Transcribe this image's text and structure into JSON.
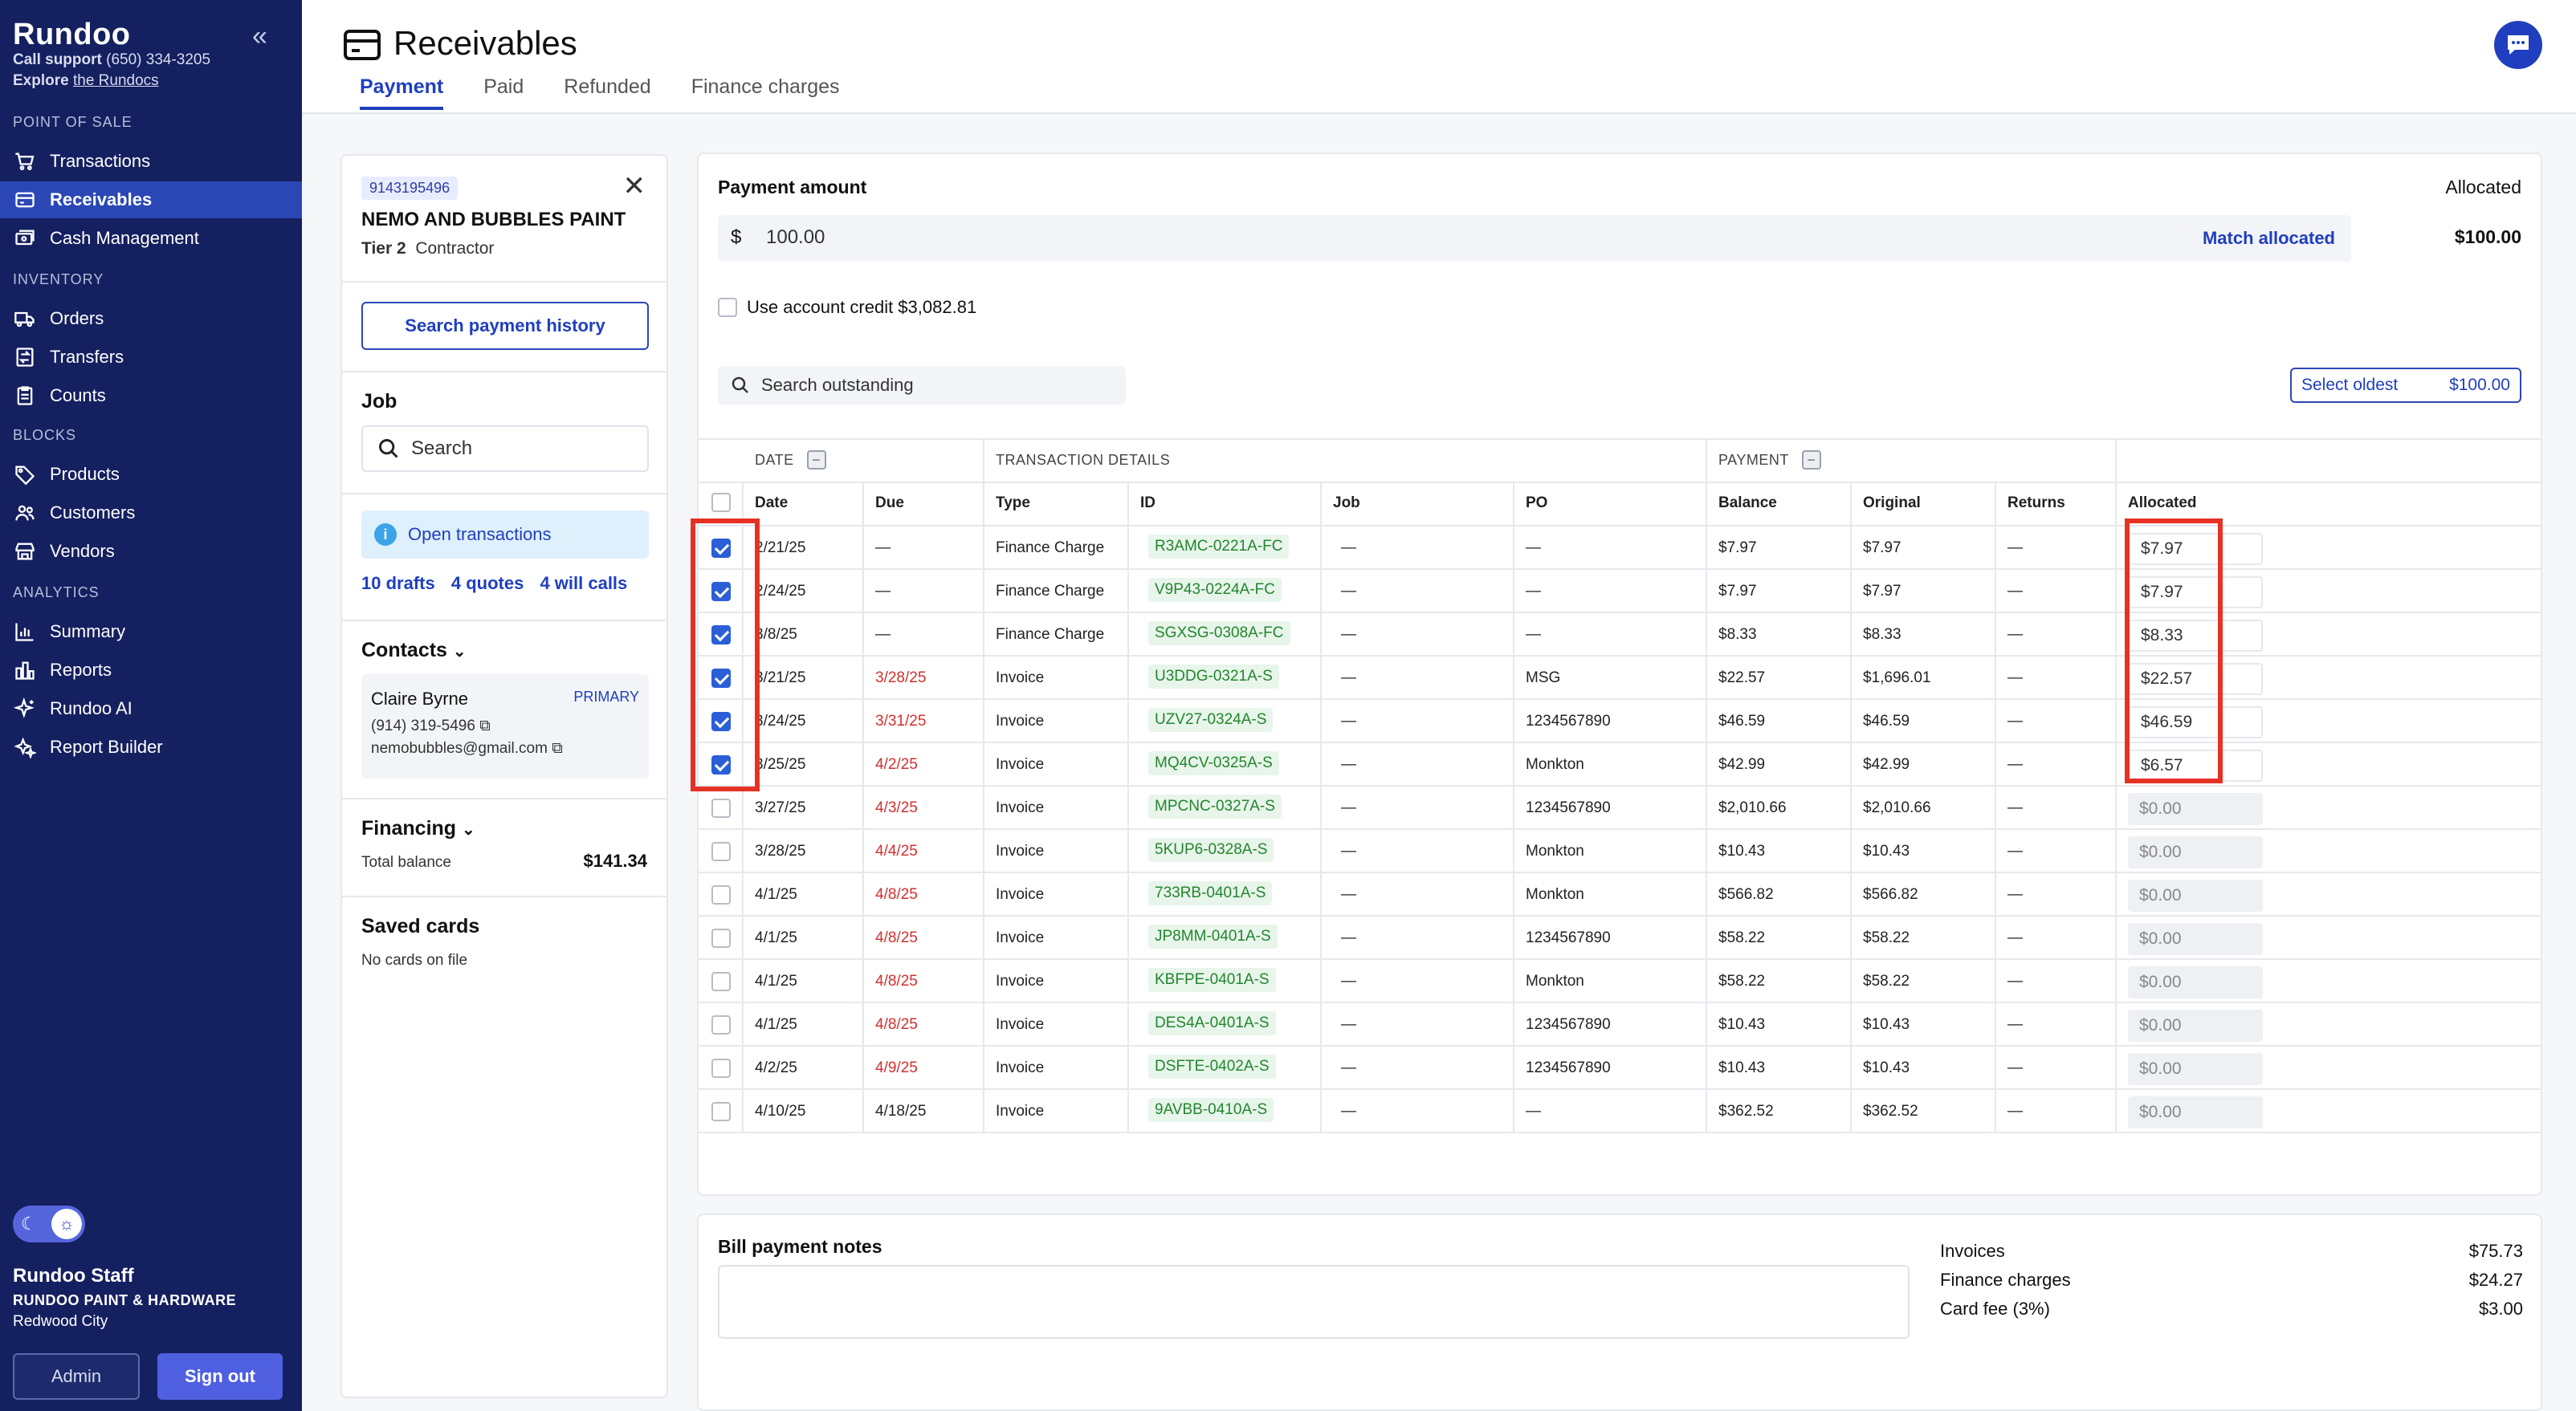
{
  "sidebar": {
    "brand": "Rundoo",
    "support_label": "Call support",
    "support_phone": "(650) 334-3205",
    "explore_label": "Explore",
    "explore_link": "the Rundocs",
    "sections": {
      "pos": "POINT OF SALE",
      "inventory": "INVENTORY",
      "blocks": "BLOCKS",
      "analytics": "ANALYTICS"
    },
    "items": {
      "transactions": "Transactions",
      "receivables": "Receivables",
      "cash": "Cash Management",
      "orders": "Orders",
      "transfers": "Transfers",
      "counts": "Counts",
      "products": "Products",
      "customers": "Customers",
      "vendors": "Vendors",
      "summary": "Summary",
      "reports": "Reports",
      "ai": "Rundoo AI",
      "builder": "Report Builder"
    },
    "user_name": "Rundoo Staff",
    "store_name": "RUNDOO PAINT & HARDWARE",
    "city": "Redwood City",
    "admin_label": "Admin",
    "signout_label": "Sign out"
  },
  "header": {
    "title": "Receivables",
    "tabs": [
      "Payment",
      "Paid",
      "Refunded",
      "Finance charges"
    ]
  },
  "customer": {
    "account": "9143195496",
    "name": "NEMO AND BUBBLES PAINT",
    "tier": "Tier 2",
    "type": "Contractor",
    "search_history_label": "Search payment history",
    "job_heading": "Job",
    "job_placeholder": "Search",
    "open_tx_label": "Open transactions",
    "drafts": "10 drafts",
    "quotes": "4 quotes",
    "will_calls": "4 will calls",
    "contacts_heading": "Contacts",
    "contact": {
      "name": "Claire Byrne",
      "badge": "PRIMARY",
      "phone": "(914) 319-5496",
      "email": "nemobubbles@gmail.com"
    },
    "financing_heading": "Financing",
    "total_balance_label": "Total balance",
    "total_balance": "$141.34",
    "saved_cards_heading": "Saved cards",
    "saved_cards_text": "No cards on file"
  },
  "payment": {
    "amount_label": "Payment amount",
    "allocated_label": "Allocated",
    "currency": "$",
    "amount": "100.00",
    "match_label": "Match allocated",
    "allocated_value": "$100.00",
    "credit_label": "Use account credit $3,082.81",
    "search_placeholder": "Search outstanding",
    "select_oldest_label": "Select oldest",
    "select_oldest_amount": "$100.00"
  },
  "table": {
    "groups": {
      "date": "DATE",
      "details": "TRANSACTION DETAILS",
      "payment": "PAYMENT"
    },
    "headers": {
      "date": "Date",
      "due": "Due",
      "type": "Type",
      "id": "ID",
      "job": "Job",
      "po": "PO",
      "balance": "Balance",
      "original": "Original",
      "returns": "Returns",
      "allocated": "Allocated"
    },
    "rows": [
      {
        "checked": true,
        "date": "2/21/25",
        "due": "—",
        "due_overdue": false,
        "type": "Finance Charge",
        "id": "R3AMC-0221A-FC",
        "job": "—",
        "po": "—",
        "balance": "$7.97",
        "original": "$7.97",
        "returns": "—",
        "allocated": "$7.97"
      },
      {
        "checked": true,
        "date": "2/24/25",
        "due": "—",
        "due_overdue": false,
        "type": "Finance Charge",
        "id": "V9P43-0224A-FC",
        "job": "—",
        "po": "—",
        "balance": "$7.97",
        "original": "$7.97",
        "returns": "—",
        "allocated": "$7.97"
      },
      {
        "checked": true,
        "date": "3/8/25",
        "due": "—",
        "due_overdue": false,
        "type": "Finance Charge",
        "id": "SGXSG-0308A-FC",
        "job": "—",
        "po": "—",
        "balance": "$8.33",
        "original": "$8.33",
        "returns": "—",
        "allocated": "$8.33"
      },
      {
        "checked": true,
        "date": "3/21/25",
        "due": "3/28/25",
        "due_overdue": true,
        "type": "Invoice",
        "id": "U3DDG-0321A-S",
        "job": "—",
        "po": "MSG",
        "balance": "$22.57",
        "original": "$1,696.01",
        "returns": "—",
        "allocated": "$22.57"
      },
      {
        "checked": true,
        "date": "3/24/25",
        "due": "3/31/25",
        "due_overdue": true,
        "type": "Invoice",
        "id": "UZV27-0324A-S",
        "job": "—",
        "po": "1234567890",
        "balance": "$46.59",
        "original": "$46.59",
        "returns": "—",
        "allocated": "$46.59"
      },
      {
        "checked": true,
        "date": "3/25/25",
        "due": "4/2/25",
        "due_overdue": true,
        "type": "Invoice",
        "id": "MQ4CV-0325A-S",
        "job": "—",
        "po": "Monkton",
        "balance": "$42.99",
        "original": "$42.99",
        "returns": "—",
        "allocated": "$6.57"
      },
      {
        "checked": false,
        "date": "3/27/25",
        "due": "4/3/25",
        "due_overdue": true,
        "type": "Invoice",
        "id": "MPCNC-0327A-S",
        "job": "—",
        "po": "1234567890",
        "balance": "$2,010.66",
        "original": "$2,010.66",
        "returns": "—",
        "allocated": "$0.00"
      },
      {
        "checked": false,
        "date": "3/28/25",
        "due": "4/4/25",
        "due_overdue": true,
        "type": "Invoice",
        "id": "5KUP6-0328A-S",
        "job": "—",
        "po": "Monkton",
        "balance": "$10.43",
        "original": "$10.43",
        "returns": "—",
        "allocated": "$0.00"
      },
      {
        "checked": false,
        "date": "4/1/25",
        "due": "4/8/25",
        "due_overdue": true,
        "type": "Invoice",
        "id": "733RB-0401A-S",
        "job": "—",
        "po": "Monkton",
        "balance": "$566.82",
        "original": "$566.82",
        "returns": "—",
        "allocated": "$0.00"
      },
      {
        "checked": false,
        "date": "4/1/25",
        "due": "4/8/25",
        "due_overdue": true,
        "type": "Invoice",
        "id": "JP8MM-0401A-S",
        "job": "—",
        "po": "1234567890",
        "balance": "$58.22",
        "original": "$58.22",
        "returns": "—",
        "allocated": "$0.00"
      },
      {
        "checked": false,
        "date": "4/1/25",
        "due": "4/8/25",
        "due_overdue": true,
        "type": "Invoice",
        "id": "KBFPE-0401A-S",
        "job": "—",
        "po": "Monkton",
        "balance": "$58.22",
        "original": "$58.22",
        "returns": "—",
        "allocated": "$0.00"
      },
      {
        "checked": false,
        "date": "4/1/25",
        "due": "4/8/25",
        "due_overdue": true,
        "type": "Invoice",
        "id": "DES4A-0401A-S",
        "job": "—",
        "po": "1234567890",
        "balance": "$10.43",
        "original": "$10.43",
        "returns": "—",
        "allocated": "$0.00"
      },
      {
        "checked": false,
        "date": "4/2/25",
        "due": "4/9/25",
        "due_overdue": true,
        "type": "Invoice",
        "id": "DSFTE-0402A-S",
        "job": "—",
        "po": "1234567890",
        "balance": "$10.43",
        "original": "$10.43",
        "returns": "—",
        "allocated": "$0.00"
      },
      {
        "checked": false,
        "date": "4/10/25",
        "due": "4/18/25",
        "due_overdue": false,
        "type": "Invoice",
        "id": "9AVBB-0410A-S",
        "job": "—",
        "po": "—",
        "balance": "$362.52",
        "original": "$362.52",
        "returns": "—",
        "allocated": "$0.00"
      }
    ]
  },
  "summary": {
    "notes_heading": "Bill payment notes",
    "invoices_label": "Invoices",
    "invoices_value": "$75.73",
    "finance_label": "Finance charges",
    "finance_value": "$24.27",
    "fee_label": "Card fee (3%)",
    "fee_value": "$3.00"
  },
  "colors": {
    "sidebar_bg": "#152060",
    "accent": "#1f3fbf",
    "overdue": "#d32f2f",
    "id_tag": "#22862e",
    "highlight": "#e53225"
  }
}
